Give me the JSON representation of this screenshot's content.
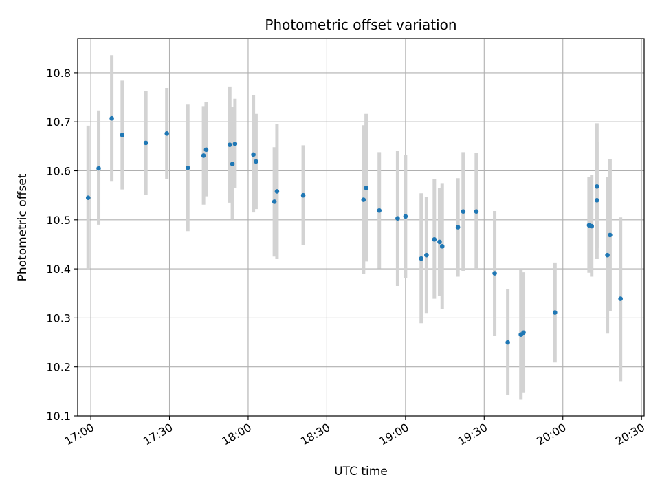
{
  "chart_data": {
    "type": "scatter",
    "title": "Photometric offset variation",
    "xlabel": "UTC time",
    "ylabel": "Photometric offset",
    "x_unit": "UTC time of day",
    "xlim": [
      "16:55",
      "20:31"
    ],
    "ylim": [
      10.1,
      10.87
    ],
    "x_ticks": [
      "17:00",
      "17:30",
      "18:00",
      "18:30",
      "19:00",
      "19:30",
      "20:00",
      "20:30"
    ],
    "y_ticks": [
      "10.1",
      "10.2",
      "10.3",
      "10.4",
      "10.5",
      "10.6",
      "10.7",
      "10.8"
    ],
    "grid": true,
    "legend": "none",
    "colors": {
      "point": "#1f77b4",
      "error_bar": "#d3d3d3",
      "grid": "#b0b0b0"
    },
    "series": [
      {
        "x": [
          "16:59",
          "17:03",
          "17:08",
          "17:12",
          "17:21",
          "17:29",
          "17:37",
          "17:43",
          "17:44",
          "17:53",
          "17:54",
          "17:55",
          "18:02",
          "18:03",
          "18:10",
          "18:11",
          "18:21",
          "18:44",
          "18:45",
          "18:50",
          "18:57",
          "19:00",
          "19:06",
          "19:08",
          "19:11",
          "19:13",
          "19:14",
          "19:20",
          "19:22",
          "19:27",
          "19:34",
          "19:39",
          "19:44",
          "19:45",
          "19:57",
          "20:10",
          "20:11",
          "20:13",
          "20:13",
          "20:17",
          "20:18",
          "20:22"
        ],
        "y": [
          10.545,
          10.605,
          10.707,
          10.673,
          10.657,
          10.676,
          10.606,
          10.631,
          10.643,
          10.653,
          10.614,
          10.655,
          10.633,
          10.619,
          10.537,
          10.558,
          10.55,
          10.541,
          10.565,
          10.519,
          10.503,
          10.507,
          10.421,
          10.428,
          10.46,
          10.455,
          10.446,
          10.485,
          10.517,
          10.517,
          10.391,
          10.25,
          10.266,
          10.27,
          10.311,
          10.489,
          10.487,
          10.54,
          10.568,
          10.428,
          10.469,
          10.339
        ],
        "yerr_low": [
          10.4,
          10.49,
          10.578,
          10.562,
          10.551,
          10.583,
          10.477,
          10.531,
          10.548,
          10.535,
          10.5,
          10.565,
          10.515,
          10.522,
          10.425,
          10.42,
          10.448,
          10.39,
          10.415,
          10.401,
          10.365,
          10.382,
          10.289,
          10.31,
          10.339,
          10.345,
          10.318,
          10.384,
          10.396,
          10.4,
          10.263,
          10.143,
          10.133,
          10.148,
          10.209,
          10.392,
          10.384,
          10.442,
          10.421,
          10.268,
          10.314,
          10.171
        ],
        "yerr_high": [
          10.692,
          10.723,
          10.836,
          10.784,
          10.763,
          10.769,
          10.735,
          10.732,
          10.741,
          10.772,
          10.73,
          10.747,
          10.755,
          10.716,
          10.648,
          10.695,
          10.652,
          10.693,
          10.716,
          10.638,
          10.64,
          10.632,
          10.554,
          10.547,
          10.583,
          10.565,
          10.575,
          10.585,
          10.638,
          10.636,
          10.518,
          10.358,
          10.398,
          10.393,
          10.413,
          10.587,
          10.592,
          10.658,
          10.697,
          10.587,
          10.624,
          10.505
        ]
      }
    ]
  }
}
